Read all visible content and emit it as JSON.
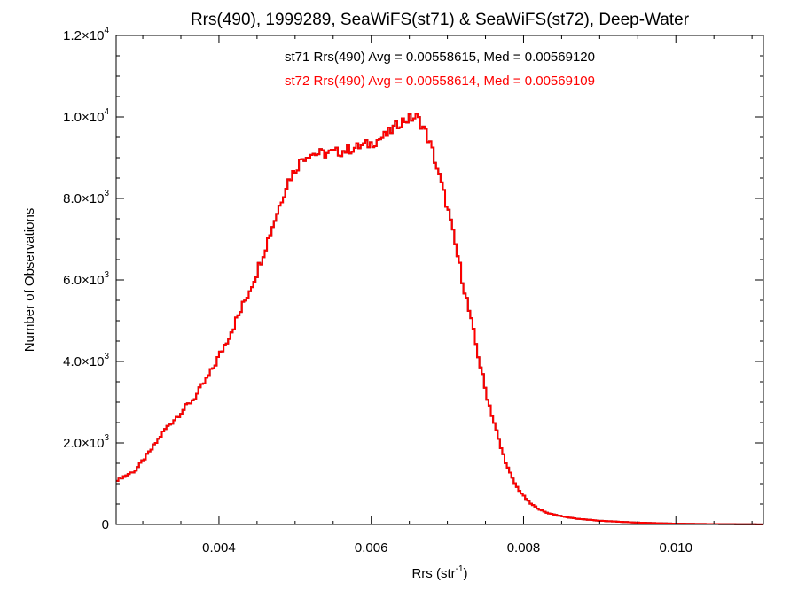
{
  "chart_data": {
    "type": "histogram",
    "title": "Rrs(490), 1999289, SeaWiFS(st71) & SeaWiFS(st72), Deep-Water",
    "xlabel": "Rrs (str",
    "xlabel_sup": "-1",
    "xlabel_close": ")",
    "ylabel": "Number of Observations",
    "xlim": [
      0.00265,
      0.01115
    ],
    "ylim": [
      0,
      12000
    ],
    "x_ticks": [
      {
        "value": 0.004,
        "label": "0.004"
      },
      {
        "value": 0.006,
        "label": "0.006"
      },
      {
        "value": 0.008,
        "label": "0.008"
      },
      {
        "value": 0.01,
        "label": "0.010"
      }
    ],
    "y_ticks": [
      {
        "value": 0,
        "mant": "0",
        "exp": ""
      },
      {
        "value": 2000,
        "mant": "2.0×10",
        "exp": "3"
      },
      {
        "value": 4000,
        "mant": "4.0×10",
        "exp": "3"
      },
      {
        "value": 6000,
        "mant": "6.0×10",
        "exp": "3"
      },
      {
        "value": 8000,
        "mant": "8.0×10",
        "exp": "3"
      },
      {
        "value": 10000,
        "mant": "1.0×10",
        "exp": "4"
      },
      {
        "value": 12000,
        "mant": "1.2×10",
        "exp": "4"
      }
    ],
    "grid": false,
    "annotations": [
      {
        "text": "st71 Rrs(490) Avg = 0.00558615, Med = 0.00569120",
        "color": "#000000"
      },
      {
        "text": "st72 Rrs(490) Avg = 0.00558614, Med = 0.00569109",
        "color": "#ff0000"
      }
    ],
    "series": [
      {
        "name": "st71",
        "color": "#000000",
        "anchors": [
          [
            0.00265,
            1080
          ],
          [
            0.0029,
            1320
          ],
          [
            0.0031,
            1800
          ],
          [
            0.0033,
            2350
          ],
          [
            0.0035,
            2750
          ],
          [
            0.0037,
            3150
          ],
          [
            0.0039,
            3750
          ],
          [
            0.0041,
            4500
          ],
          [
            0.0043,
            5300
          ],
          [
            0.0045,
            6200
          ],
          [
            0.0047,
            7300
          ],
          [
            0.0049,
            8400
          ],
          [
            0.0051,
            9000
          ],
          [
            0.0052,
            9100
          ],
          [
            0.0054,
            9100
          ],
          [
            0.0056,
            9150
          ],
          [
            0.0058,
            9250
          ],
          [
            0.006,
            9350
          ],
          [
            0.0062,
            9550
          ],
          [
            0.0064,
            9900
          ],
          [
            0.0066,
            10000
          ],
          [
            0.0067,
            9700
          ],
          [
            0.0068,
            9200
          ],
          [
            0.0069,
            8500
          ],
          [
            0.007,
            7800
          ],
          [
            0.0071,
            6900
          ],
          [
            0.0072,
            6000
          ],
          [
            0.0073,
            5100
          ],
          [
            0.0074,
            4200
          ],
          [
            0.0075,
            3300
          ],
          [
            0.0076,
            2600
          ],
          [
            0.0077,
            1900
          ],
          [
            0.0078,
            1350
          ],
          [
            0.0079,
            950
          ],
          [
            0.008,
            700
          ],
          [
            0.0081,
            500
          ],
          [
            0.0082,
            380
          ],
          [
            0.0083,
            290
          ],
          [
            0.0085,
            200
          ],
          [
            0.0087,
            140
          ],
          [
            0.009,
            90
          ],
          [
            0.0095,
            45
          ],
          [
            0.01,
            20
          ],
          [
            0.0105,
            10
          ],
          [
            0.01115,
            3
          ]
        ]
      },
      {
        "name": "st72",
        "color": "#ff0000",
        "anchors": [
          [
            0.00265,
            1080
          ],
          [
            0.0029,
            1320
          ],
          [
            0.0031,
            1800
          ],
          [
            0.0033,
            2350
          ],
          [
            0.0035,
            2750
          ],
          [
            0.0037,
            3150
          ],
          [
            0.0039,
            3750
          ],
          [
            0.0041,
            4500
          ],
          [
            0.0043,
            5300
          ],
          [
            0.0045,
            6200
          ],
          [
            0.0047,
            7300
          ],
          [
            0.0049,
            8400
          ],
          [
            0.0051,
            9000
          ],
          [
            0.0052,
            9100
          ],
          [
            0.0054,
            9100
          ],
          [
            0.0056,
            9150
          ],
          [
            0.0058,
            9250
          ],
          [
            0.006,
            9350
          ],
          [
            0.0062,
            9550
          ],
          [
            0.0064,
            9900
          ],
          [
            0.0066,
            10000
          ],
          [
            0.0067,
            9700
          ],
          [
            0.0068,
            9200
          ],
          [
            0.0069,
            8500
          ],
          [
            0.007,
            7800
          ],
          [
            0.0071,
            6900
          ],
          [
            0.0072,
            6000
          ],
          [
            0.0073,
            5100
          ],
          [
            0.0074,
            4200
          ],
          [
            0.0075,
            3300
          ],
          [
            0.0076,
            2600
          ],
          [
            0.0077,
            1900
          ],
          [
            0.0078,
            1350
          ],
          [
            0.0079,
            950
          ],
          [
            0.008,
            700
          ],
          [
            0.0081,
            500
          ],
          [
            0.0082,
            380
          ],
          [
            0.0083,
            290
          ],
          [
            0.0085,
            200
          ],
          [
            0.0087,
            140
          ],
          [
            0.009,
            90
          ],
          [
            0.0095,
            45
          ],
          [
            0.01,
            20
          ],
          [
            0.0105,
            10
          ],
          [
            0.01115,
            3
          ]
        ]
      }
    ]
  }
}
